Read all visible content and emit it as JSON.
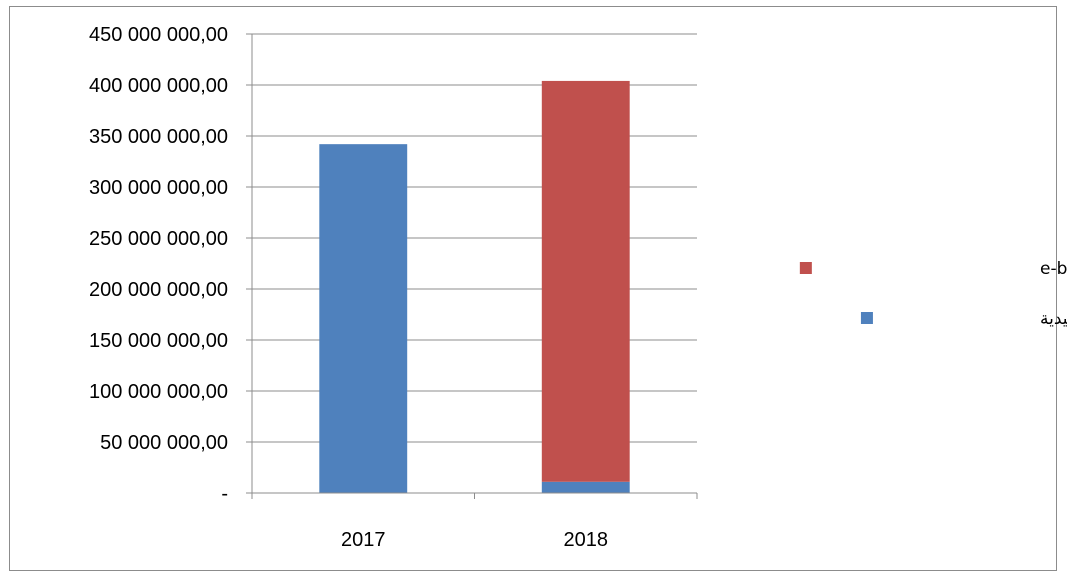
{
  "chart_data": {
    "type": "bar",
    "stacked": true,
    "categories": [
      "2017",
      "2018"
    ],
    "series": [
      {
        "name": "تسديد بالطرق التقليدية",
        "color": "#4f81bd",
        "values": [
          342000000,
          11000000
        ]
      },
      {
        "name": "تسديد عبر الانترنت e-banking",
        "color": "#c0504d",
        "values": [
          0,
          393000000
        ]
      }
    ],
    "ylim": [
      0,
      450000000
    ],
    "y_ticks": [
      0,
      50000000,
      100000000,
      150000000,
      200000000,
      250000000,
      300000000,
      350000000,
      400000000,
      450000000
    ],
    "y_tick_labels": [
      "-",
      "50 000 000,00",
      "100 000 000,00",
      "150 000 000,00",
      "200 000 000,00",
      "250 000 000,00",
      "300 000 000,00",
      "350 000 000,00",
      "400 000 000,00",
      "450 000 000,00"
    ],
    "grid": true,
    "legend_position": "right",
    "legend_order": [
      1,
      0
    ]
  }
}
